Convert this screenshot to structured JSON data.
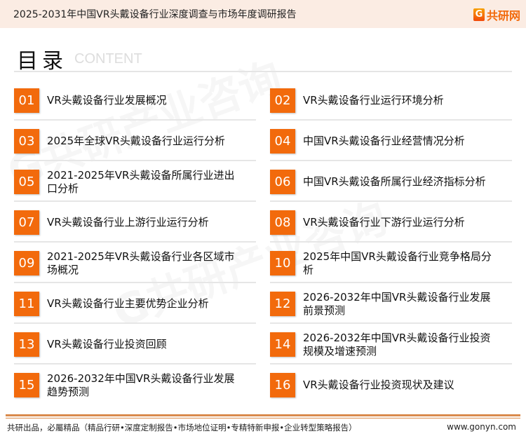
{
  "header": {
    "title": "2025-2031年中国VR头戴设备行业深度调查与市场年度调研报告",
    "logo_text": "共研网",
    "logo_mark": "G"
  },
  "toc": {
    "title": "目录",
    "subtitle": "CONTENT"
  },
  "accent_color": "#f26a0c",
  "items": [
    {
      "num": "01",
      "label": "VR头戴设备行业发展概况"
    },
    {
      "num": "02",
      "label": "VR头戴设备行业运行环境分析"
    },
    {
      "num": "03",
      "label": "2025年全球VR头戴设备行业运行分析"
    },
    {
      "num": "04",
      "label": "中国VR头戴设备行业经营情况分析"
    },
    {
      "num": "05",
      "label": "2021-2025年VR头戴设备所属行业进出口分析"
    },
    {
      "num": "06",
      "label": "中国VR头戴设备所属行业经济指标分析"
    },
    {
      "num": "07",
      "label": "VR头戴设备行业上游行业运行分析"
    },
    {
      "num": "08",
      "label": "VR头戴设备行业下游行业运行分析"
    },
    {
      "num": "09",
      "label": "2021-2025年VR头戴设备行业各区域市场概况"
    },
    {
      "num": "10",
      "label": "2025年中国VR头戴设备行业竞争格局分析"
    },
    {
      "num": "11",
      "label": "VR头戴设备行业主要优势企业分析"
    },
    {
      "num": "12",
      "label": "2026-2032年中国VR头戴设备行业发展前景预测"
    },
    {
      "num": "13",
      "label": "VR头戴设备行业投资回顾"
    },
    {
      "num": "14",
      "label": "2026-2032年中国VR头戴设备行业投资规模及增速预测"
    },
    {
      "num": "15",
      "label": "2026-2032年中国VR头戴设备行业发展趋势预测"
    },
    {
      "num": "16",
      "label": "VR头戴设备行业投资现状及建议"
    }
  ],
  "footer": {
    "slogan": "共研出品，必屬精品（精品行研•深度定制报告•市场地位证明•专精特新申报•企业转型策略报告）",
    "url": "www.gonyn.com"
  }
}
